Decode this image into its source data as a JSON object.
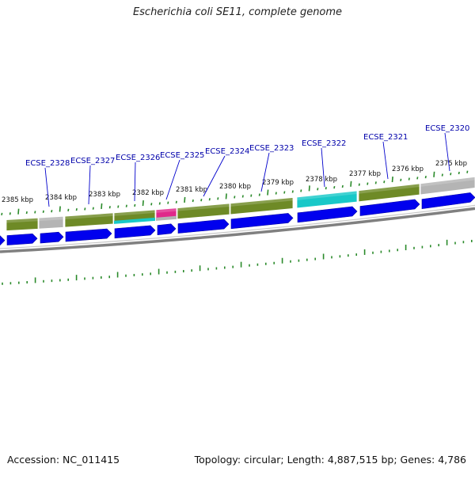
{
  "title": "Escherichia coli SE11, complete genome",
  "footer": {
    "accession": "Accession: NC_011415",
    "topology": "Topology: circular; Length: 4,887,515 bp; Genes: 4,786"
  },
  "colors": {
    "forward_gene": "#0000ee",
    "cds_olive": "#6e8a26",
    "cds_olive_light": "#8aa63a",
    "cds_cyan": "#18c8c8",
    "cds_magenta": "#e0288a",
    "cds_grey": "#b4b4b4",
    "backbone": "#808080",
    "tick": "#2a8a2a",
    "gene_label": "#0000aa"
  },
  "kbp_labels": [
    "2385 kbp",
    "2384 kbp",
    "2383 kbp",
    "2382 kbp",
    "2381 kbp",
    "2380 kbp",
    "2379 kbp",
    "2378 kbp",
    "2377 kbp",
    "2376 kbp",
    "2375 kbp"
  ],
  "gene_labels": [
    "ECSE_2328",
    "ECSE_2327",
    "ECSE_2326",
    "ECSE_2325",
    "ECSE_2324",
    "ECSE_2323",
    "ECSE_2322",
    "ECSE_2321",
    "ECSE_2320"
  ],
  "annotation_blocks": [
    {
      "color": "olive"
    },
    {
      "color": "grey"
    },
    {
      "color": "olive"
    },
    {
      "color": "olive"
    },
    {
      "color": "magenta"
    },
    {
      "color": "olive"
    },
    {
      "color": "olive"
    },
    {
      "color": "cyan"
    },
    {
      "color": "olive"
    },
    {
      "color": "grey"
    }
  ],
  "gene_arrows": [
    {
      "strand": "+"
    },
    {
      "strand": "+"
    },
    {
      "strand": "+"
    },
    {
      "strand": "+"
    },
    {
      "strand": "+"
    },
    {
      "strand": "+"
    },
    {
      "strand": "+"
    },
    {
      "strand": "+"
    },
    {
      "strand": "+"
    },
    {
      "strand": "+"
    },
    {
      "strand": "+"
    }
  ]
}
